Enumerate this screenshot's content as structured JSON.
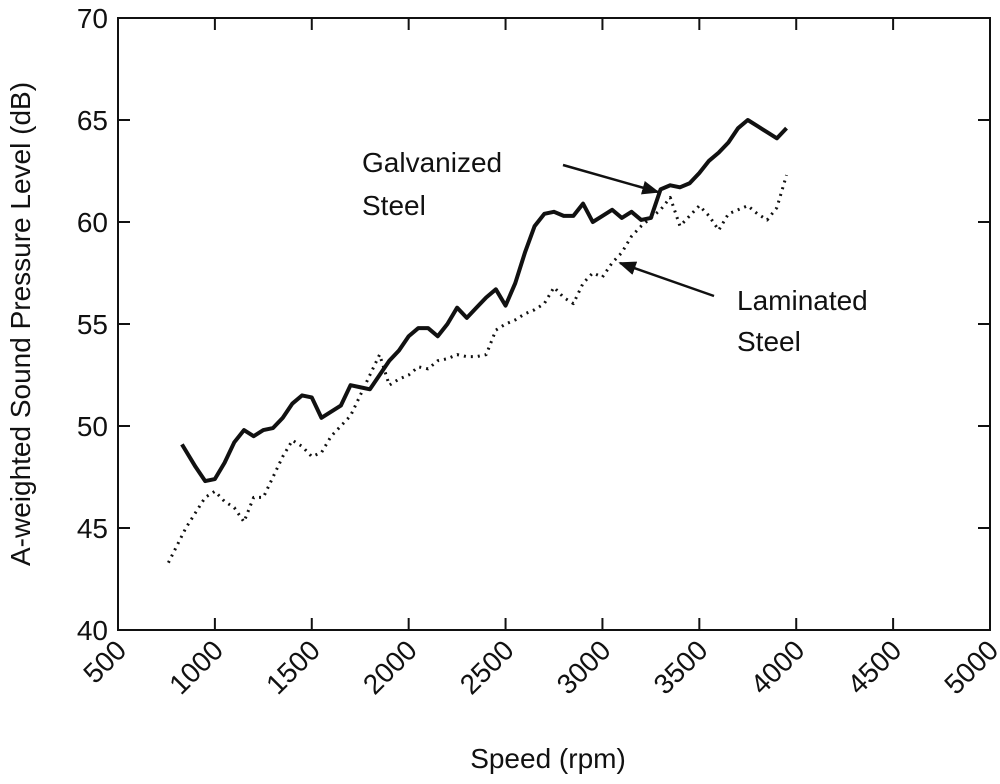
{
  "chart_data": {
    "type": "line",
    "x_label": "Speed (rpm)",
    "y_label": "A-weighted Sound Pressure Level (dB)",
    "xlim": [
      500,
      5000
    ],
    "xticks": [
      500,
      1000,
      1500,
      2000,
      2500,
      3000,
      3500,
      4000,
      4500,
      5000
    ],
    "ylim": [
      40,
      70
    ],
    "yticks": [
      40,
      45,
      50,
      55,
      60,
      65,
      70
    ],
    "series": [
      {
        "color": "#111111",
        "linestyle": "solid",
        "x": [
          830,
          900,
          950,
          1000,
          1050,
          1100,
          1150,
          1200,
          1250,
          1300,
          1350,
          1400,
          1450,
          1500,
          1550,
          1600,
          1650,
          1700,
          1750,
          1800,
          1850,
          1900,
          1950,
          2000,
          2050,
          2100,
          2150,
          2200,
          2250,
          2300,
          2350,
          2400,
          2450,
          2500,
          2550,
          2600,
          2650,
          2700,
          2750,
          2800,
          2850,
          2900,
          2950,
          3000,
          3050,
          3100,
          3150,
          3200,
          3250,
          3300,
          3350,
          3400,
          3450,
          3500,
          3550,
          3600,
          3650,
          3700,
          3750,
          3800,
          3850,
          3900,
          3950
        ],
        "values": [
          49.1,
          48,
          47.3,
          47.4,
          48.2,
          49.2,
          49.8,
          49.5,
          49.8,
          49.9,
          50.4,
          51.1,
          51.5,
          51.4,
          50.4,
          50.7,
          51,
          52,
          51.9,
          51.8,
          52.5,
          53.2,
          53.7,
          54.4,
          54.8,
          54.8,
          54.4,
          55,
          55.8,
          55.3,
          55.8,
          56.3,
          56.7,
          55.9,
          57,
          58.5,
          59.8,
          60.4,
          60.5,
          60.3,
          60.3,
          60.9,
          60,
          60.3,
          60.6,
          60.2,
          60.5,
          60.1,
          60.2,
          61.6,
          61.8,
          61.7,
          61.9,
          62.4,
          63,
          63.4,
          63.9,
          64.6,
          65,
          64.7,
          64.4,
          64.1,
          64.6
        ]
      },
      {
        "color": "#111111",
        "linestyle": "dotted",
        "x": [
          760,
          850,
          950,
          1000,
          1050,
          1100,
          1150,
          1200,
          1250,
          1300,
          1350,
          1400,
          1450,
          1500,
          1550,
          1600,
          1650,
          1700,
          1750,
          1800,
          1850,
          1900,
          1950,
          2000,
          2050,
          2100,
          2150,
          2200,
          2250,
          2300,
          2350,
          2400,
          2450,
          2500,
          2550,
          2600,
          2650,
          2700,
          2750,
          2800,
          2850,
          2900,
          2950,
          3000,
          3050,
          3100,
          3150,
          3200,
          3250,
          3300,
          3350,
          3400,
          3450,
          3500,
          3550,
          3600,
          3650,
          3700,
          3750,
          3800,
          3850,
          3900,
          3950
        ],
        "values": [
          43.3,
          45,
          46.5,
          46.8,
          46.3,
          46,
          45.3,
          46.5,
          46.5,
          47.5,
          48.5,
          49.3,
          49,
          48.5,
          48.7,
          49.5,
          50,
          50.5,
          51.5,
          52.5,
          53.5,
          52,
          52.3,
          52.5,
          52.9,
          52.8,
          53.2,
          53.3,
          53.5,
          53.4,
          53.4,
          53.5,
          54.7,
          55,
          55.2,
          55.5,
          55.7,
          56,
          56.8,
          56.3,
          56,
          57,
          57.5,
          57.3,
          58,
          58.5,
          59.3,
          59.8,
          60.2,
          60.6,
          61.2,
          59.8,
          60.3,
          60.8,
          60.3,
          59.6,
          60.4,
          60.6,
          60.8,
          60.4,
          60.1,
          60.7,
          62.3
        ]
      }
    ],
    "annotations": [
      {
        "lines": [
          "Galvanized",
          "Steel"
        ]
      },
      {
        "lines": [
          "Laminated",
          "Steel"
        ]
      }
    ]
  }
}
